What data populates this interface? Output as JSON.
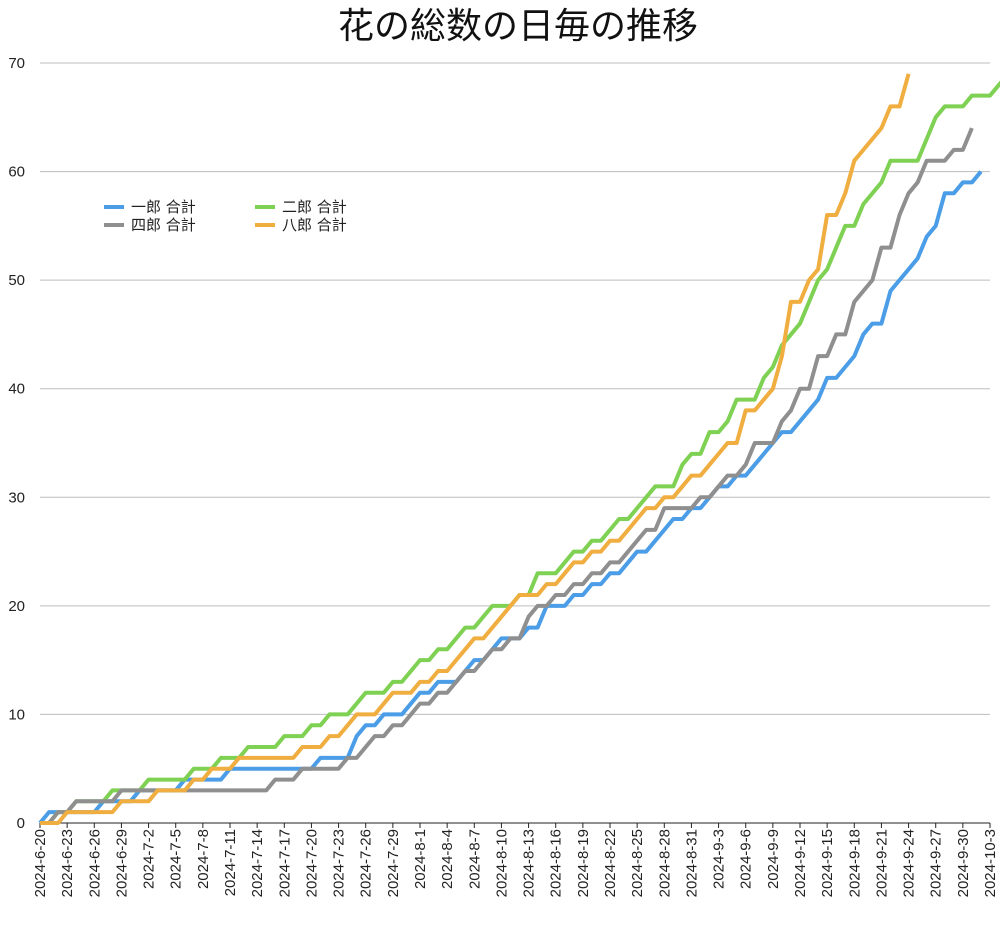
{
  "chart_data": {
    "type": "line",
    "title": "花の総数の日毎の推移",
    "xlabel": "",
    "ylabel": "",
    "ylim": [
      0,
      70
    ],
    "yticks": [
      0,
      10,
      20,
      30,
      40,
      50,
      60,
      70
    ],
    "grid": true,
    "legend_position": "top-left",
    "x_tick_labels": [
      "2024-6-20",
      "2024-6-23",
      "2024-6-26",
      "2024-6-29",
      "2024-7-2",
      "2024-7-5",
      "2024-7-8",
      "2024-7-11",
      "2024-7-14",
      "2024-7-17",
      "2024-7-20",
      "2024-7-23",
      "2024-7-26",
      "2024-7-29",
      "2024-8-1",
      "2024-8-4",
      "2024-8-7",
      "2024-8-10",
      "2024-8-13",
      "2024-8-16",
      "2024-8-19",
      "2024-8-22",
      "2024-8-25",
      "2024-8-28",
      "2024-8-31",
      "2024-9-3",
      "2024-9-6",
      "2024-9-9",
      "2024-9-12",
      "2024-9-15",
      "2024-9-18",
      "2024-9-21",
      "2024-9-24",
      "2024-9-27",
      "2024-9-30",
      "2024-10-3"
    ],
    "x_start": "2024-6-20",
    "x_end": "2024-10-3",
    "series": [
      {
        "name": "一郎 合計",
        "color": "#4a9de6",
        "values": [
          0,
          1,
          1,
          1,
          1,
          1,
          1,
          2,
          2,
          2,
          2,
          3,
          3,
          3,
          3,
          3,
          4,
          4,
          4,
          4,
          4,
          5,
          5,
          5,
          5,
          5,
          5,
          5,
          5,
          5,
          5,
          6,
          6,
          6,
          6,
          8,
          9,
          9,
          10,
          10,
          10,
          11,
          12,
          12,
          13,
          13,
          13,
          14,
          15,
          15,
          16,
          17,
          17,
          17,
          18,
          18,
          20,
          20,
          20,
          21,
          21,
          22,
          22,
          23,
          23,
          24,
          25,
          25,
          26,
          27,
          28,
          28,
          29,
          29,
          30,
          31,
          31,
          32,
          32,
          33,
          34,
          35,
          36,
          36,
          37,
          38,
          39,
          41,
          41,
          42,
          43,
          45,
          46,
          46,
          49,
          50,
          51,
          52,
          54,
          55,
          58,
          58,
          59,
          59,
          60
        ]
      },
      {
        "name": "二郎 合計",
        "color": "#7ed152",
        "values": [
          0,
          0,
          1,
          1,
          2,
          2,
          2,
          2,
          3,
          3,
          3,
          3,
          4,
          4,
          4,
          4,
          4,
          5,
          5,
          5,
          6,
          6,
          6,
          7,
          7,
          7,
          7,
          8,
          8,
          8,
          9,
          9,
          10,
          10,
          10,
          11,
          12,
          12,
          12,
          13,
          13,
          14,
          15,
          15,
          16,
          16,
          17,
          18,
          18,
          19,
          20,
          20,
          20,
          21,
          21,
          23,
          23,
          23,
          24,
          25,
          25,
          26,
          26,
          27,
          28,
          28,
          29,
          30,
          31,
          31,
          31,
          33,
          34,
          34,
          36,
          36,
          37,
          39,
          39,
          39,
          41,
          42,
          44,
          45,
          46,
          48,
          50,
          51,
          53,
          55,
          55,
          57,
          58,
          59,
          61,
          61,
          61,
          61,
          63,
          65,
          66,
          66,
          66,
          67,
          67,
          67,
          68,
          69
        ]
      },
      {
        "name": "四郎 合計",
        "color": "#8f8f8f",
        "values": [
          0,
          0,
          1,
          1,
          2,
          2,
          2,
          2,
          2,
          3,
          3,
          3,
          3,
          3,
          3,
          3,
          3,
          3,
          3,
          3,
          3,
          3,
          3,
          3,
          3,
          3,
          4,
          4,
          4,
          5,
          5,
          5,
          5,
          5,
          6,
          6,
          7,
          8,
          8,
          9,
          9,
          10,
          11,
          11,
          12,
          12,
          13,
          14,
          14,
          15,
          16,
          16,
          17,
          17,
          19,
          20,
          20,
          21,
          21,
          22,
          22,
          23,
          23,
          24,
          24,
          25,
          26,
          27,
          27,
          29,
          29,
          29,
          29,
          30,
          30,
          31,
          32,
          32,
          33,
          35,
          35,
          35,
          37,
          38,
          40,
          40,
          43,
          43,
          45,
          45,
          48,
          49,
          50,
          53,
          53,
          56,
          58,
          59,
          61,
          61,
          61,
          62,
          62,
          64
        ]
      },
      {
        "name": "八郎 合計",
        "color": "#f0ad40",
        "values": [
          0,
          0,
          0,
          1,
          1,
          1,
          1,
          1,
          1,
          2,
          2,
          2,
          2,
          3,
          3,
          3,
          3,
          4,
          4,
          5,
          5,
          5,
          6,
          6,
          6,
          6,
          6,
          6,
          6,
          7,
          7,
          7,
          8,
          8,
          9,
          10,
          10,
          10,
          11,
          12,
          12,
          12,
          13,
          13,
          14,
          14,
          15,
          16,
          17,
          17,
          18,
          19,
          20,
          21,
          21,
          21,
          22,
          22,
          23,
          24,
          24,
          25,
          25,
          26,
          26,
          27,
          28,
          29,
          29,
          30,
          30,
          31,
          32,
          32,
          33,
          34,
          35,
          35,
          38,
          38,
          39,
          40,
          43,
          48,
          48,
          50,
          51,
          56,
          56,
          58,
          61,
          62,
          63,
          64,
          66,
          66,
          69
        ]
      }
    ]
  }
}
